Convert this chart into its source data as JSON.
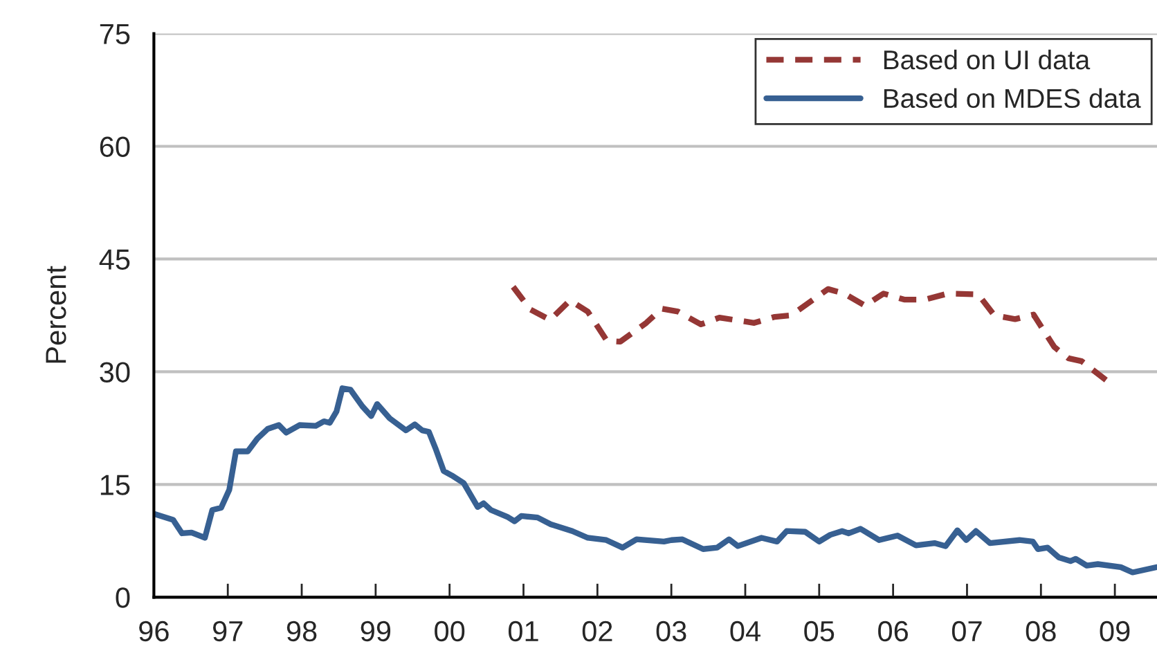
{
  "chart_data": {
    "type": "line",
    "ylabel": "Percent",
    "xlim": [
      1996,
      2009.57
    ],
    "ylim": [
      0,
      75
    ],
    "yticks": [
      0,
      15,
      30,
      45,
      60,
      75
    ],
    "xticks": [
      {
        "value": 1996,
        "label": "96"
      },
      {
        "value": 1997,
        "label": "97"
      },
      {
        "value": 1998,
        "label": "98"
      },
      {
        "value": 1999,
        "label": "99"
      },
      {
        "value": 2000,
        "label": "00"
      },
      {
        "value": 2001,
        "label": "01"
      },
      {
        "value": 2002,
        "label": "02"
      },
      {
        "value": 2003,
        "label": "03"
      },
      {
        "value": 2004,
        "label": "04"
      },
      {
        "value": 2005,
        "label": "05"
      },
      {
        "value": 2006,
        "label": "06"
      },
      {
        "value": 2007,
        "label": "07"
      },
      {
        "value": 2008,
        "label": "08"
      },
      {
        "value": 2009,
        "label": "09"
      }
    ],
    "grid": "y",
    "legend": "top right",
    "marker": "none",
    "series": [
      {
        "name": "Based on UI data",
        "color": "#953735",
        "line_style": "dashed",
        "x": [
          2000.86,
          2001.09,
          2001.36,
          2001.63,
          2001.87,
          2002.13,
          2002.31,
          2002.66,
          2002.87,
          2003.09,
          2003.4,
          2003.65,
          2004.12,
          2004.4,
          2004.62,
          2005.12,
          2005.34,
          2005.62,
          2005.87,
          2006.15,
          2006.43,
          2006.74,
          2007.15,
          2007.37,
          2007.65,
          2007.9,
          2008.18,
          2008.37,
          2008.55,
          2008.88
        ],
        "values": [
          41.3,
          38.3,
          36.9,
          39.5,
          38.0,
          34.1,
          34.0,
          36.5,
          38.4,
          38.0,
          36.3,
          37.2,
          36.5,
          37.3,
          37.5,
          41.0,
          40.4,
          38.8,
          40.4,
          39.6,
          39.6,
          40.4,
          40.3,
          37.5,
          37.0,
          37.6,
          33.3,
          31.8,
          31.4,
          28.9
        ]
      },
      {
        "name": "Based on MDES data",
        "color": "#376092",
        "line_style": "solid",
        "x": [
          1996.0,
          1996.26,
          1996.38,
          1996.51,
          1996.69,
          1996.79,
          1996.91,
          1997.02,
          1997.11,
          1997.27,
          1997.4,
          1997.54,
          1997.69,
          1997.79,
          1997.97,
          1998.19,
          1998.3,
          1998.38,
          1998.47,
          1998.55,
          1998.66,
          1998.82,
          1998.94,
          1999.02,
          1999.19,
          1999.41,
          1999.53,
          1999.63,
          1999.72,
          1999.81,
          1999.92,
          2000.03,
          2000.19,
          2000.38,
          2000.46,
          2000.56,
          2000.78,
          2000.88,
          2000.97,
          2001.19,
          2001.37,
          2001.66,
          2001.87,
          2002.12,
          2002.34,
          2002.53,
          2002.9,
          2003.0,
          2003.15,
          2003.43,
          2003.62,
          2003.78,
          2003.9,
          2004.22,
          2004.43,
          2004.56,
          2004.81,
          2005.0,
          2005.15,
          2005.31,
          2005.4,
          2005.56,
          2005.81,
          2006.06,
          2006.31,
          2006.56,
          2006.71,
          2006.87,
          2006.99,
          2007.12,
          2007.31,
          2007.71,
          2007.89,
          2007.96,
          2008.09,
          2008.24,
          2008.4,
          2008.47,
          2008.62,
          2008.77,
          2009.08,
          2009.24,
          2009.57
        ],
        "values": [
          11.1,
          10.3,
          8.5,
          8.6,
          7.9,
          11.6,
          11.9,
          14.3,
          19.4,
          19.4,
          21.1,
          22.4,
          22.9,
          21.9,
          22.9,
          22.8,
          23.4,
          23.2,
          24.7,
          27.8,
          27.6,
          25.4,
          24.1,
          25.7,
          23.8,
          22.2,
          23.0,
          22.2,
          22.0,
          19.8,
          16.8,
          16.2,
          15.2,
          12.0,
          12.5,
          11.6,
          10.7,
          10.1,
          10.8,
          10.6,
          9.7,
          8.8,
          7.9,
          7.6,
          6.6,
          7.7,
          7.4,
          7.6,
          7.7,
          6.4,
          6.6,
          7.7,
          6.8,
          7.9,
          7.4,
          8.8,
          8.7,
          7.4,
          8.3,
          8.8,
          8.5,
          9.1,
          7.6,
          8.2,
          6.9,
          7.2,
          6.8,
          8.9,
          7.6,
          8.8,
          7.2,
          7.6,
          7.4,
          6.4,
          6.6,
          5.3,
          4.8,
          5.1,
          4.2,
          4.4,
          4.0,
          3.3,
          4.0
        ]
      }
    ]
  }
}
